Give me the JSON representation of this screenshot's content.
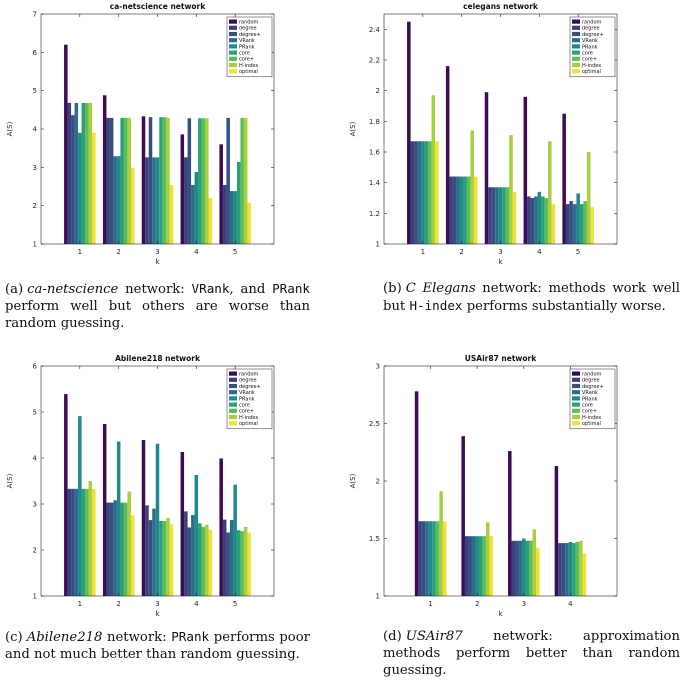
{
  "series_names": [
    "random",
    "degree",
    "degree+",
    "VRank",
    "PRank",
    "core",
    "core+",
    "H-index",
    "optimal"
  ],
  "series_colors": [
    "#3b0c55",
    "#3b3f7a",
    "#354f84",
    "#2e6c8b",
    "#1f8a8a",
    "#2ba077",
    "#5cbd59",
    "#a7cf3e",
    "#f0e232"
  ],
  "chart_data": [
    {
      "type": "bar",
      "title": "ca-netscience network",
      "xlabel": "k",
      "ylabel": "A(S)",
      "categories": [
        "1",
        "2",
        "3",
        "4",
        "5"
      ],
      "ylim": [
        1,
        7
      ],
      "yticks": [
        "1",
        "2",
        "3",
        "4",
        "5",
        "6",
        "7"
      ],
      "legend": "top-right",
      "series": [
        {
          "name": "random",
          "values": [
            6.2,
            4.88,
            4.33,
            3.86,
            3.6
          ]
        },
        {
          "name": "degree",
          "values": [
            4.68,
            4.29,
            3.26,
            3.26,
            2.54
          ]
        },
        {
          "name": "degree+",
          "values": [
            4.36,
            4.29,
            4.31,
            4.28,
            4.29
          ]
        },
        {
          "name": "VRank",
          "values": [
            4.68,
            3.29,
            3.26,
            2.54,
            2.38
          ]
        },
        {
          "name": "PRank",
          "values": [
            3.9,
            3.29,
            3.26,
            2.88,
            2.38
          ]
        },
        {
          "name": "core",
          "values": [
            4.68,
            4.29,
            4.31,
            4.28,
            3.14
          ]
        },
        {
          "name": "core+",
          "values": [
            4.68,
            4.29,
            4.31,
            4.28,
            4.29
          ]
        },
        {
          "name": "H-index",
          "values": [
            4.68,
            4.29,
            4.29,
            4.28,
            4.29
          ]
        },
        {
          "name": "optimal",
          "values": [
            3.9,
            2.99,
            2.54,
            2.2,
            2.08
          ]
        }
      ]
    },
    {
      "type": "bar",
      "title": "celegans network",
      "xlabel": "k",
      "ylabel": "A(S)",
      "categories": [
        "1",
        "2",
        "3",
        "4",
        "5"
      ],
      "ylim": [
        1,
        2.5
      ],
      "yticks": [
        "1",
        "1.2",
        "1.4",
        "1.6",
        "1.8",
        "2",
        "2.2",
        "2.4"
      ],
      "legend": "top-right",
      "series": [
        {
          "name": "random",
          "values": [
            2.45,
            2.16,
            1.99,
            1.96,
            1.85
          ]
        },
        {
          "name": "degree",
          "values": [
            1.67,
            1.44,
            1.37,
            1.31,
            1.26
          ]
        },
        {
          "name": "degree+",
          "values": [
            1.67,
            1.44,
            1.37,
            1.3,
            1.28
          ]
        },
        {
          "name": "VRank",
          "values": [
            1.67,
            1.44,
            1.37,
            1.31,
            1.26
          ]
        },
        {
          "name": "PRank",
          "values": [
            1.67,
            1.44,
            1.37,
            1.34,
            1.33
          ]
        },
        {
          "name": "core",
          "values": [
            1.67,
            1.44,
            1.37,
            1.31,
            1.26
          ]
        },
        {
          "name": "core+",
          "values": [
            1.67,
            1.44,
            1.37,
            1.3,
            1.28
          ]
        },
        {
          "name": "H-index",
          "values": [
            1.97,
            1.74,
            1.71,
            1.67,
            1.6
          ]
        },
        {
          "name": "optimal",
          "values": [
            1.67,
            1.44,
            1.34,
            1.26,
            1.24
          ]
        }
      ]
    },
    {
      "type": "bar",
      "title": "Abilene218 network",
      "xlabel": "k",
      "ylabel": "A(S)",
      "categories": [
        "1",
        "2",
        "3",
        "4",
        "5"
      ],
      "ylim": [
        1,
        6
      ],
      "yticks": [
        "1",
        "2",
        "3",
        "4",
        "5",
        "6"
      ],
      "legend": "top-right",
      "series": [
        {
          "name": "random",
          "values": [
            5.39,
            4.74,
            4.39,
            4.13,
            3.99
          ]
        },
        {
          "name": "degree",
          "values": [
            3.33,
            3.03,
            2.97,
            2.84,
            2.66
          ]
        },
        {
          "name": "degree+",
          "values": [
            3.33,
            3.03,
            2.65,
            2.49,
            2.38
          ]
        },
        {
          "name": "VRank",
          "values": [
            3.33,
            3.08,
            2.9,
            2.76,
            2.65
          ]
        },
        {
          "name": "PRank",
          "values": [
            4.91,
            4.36,
            4.31,
            3.63,
            3.42
          ]
        },
        {
          "name": "core",
          "values": [
            3.33,
            3.03,
            2.63,
            2.58,
            2.43
          ]
        },
        {
          "name": "core+",
          "values": [
            3.33,
            3.03,
            2.63,
            2.5,
            2.41
          ]
        },
        {
          "name": "H-index",
          "values": [
            3.5,
            3.27,
            2.7,
            2.55,
            2.5
          ]
        },
        {
          "name": "optimal",
          "values": [
            3.33,
            2.75,
            2.56,
            2.44,
            2.38
          ]
        }
      ]
    },
    {
      "type": "bar",
      "title": "USAir87 network",
      "xlabel": "k",
      "ylabel": "A(S)",
      "categories": [
        "1",
        "2",
        "3",
        "4"
      ],
      "ylim": [
        1,
        3
      ],
      "yticks": [
        "1",
        "1.5",
        "2",
        "2.5",
        "3"
      ],
      "legend": "top-right",
      "series": [
        {
          "name": "random",
          "values": [
            2.78,
            2.39,
            2.26,
            2.13
          ]
        },
        {
          "name": "degree",
          "values": [
            1.65,
            1.52,
            1.48,
            1.46
          ]
        },
        {
          "name": "degree+",
          "values": [
            1.65,
            1.52,
            1.48,
            1.46
          ]
        },
        {
          "name": "VRank",
          "values": [
            1.65,
            1.52,
            1.48,
            1.46
          ]
        },
        {
          "name": "PRank",
          "values": [
            1.65,
            1.52,
            1.5,
            1.47
          ]
        },
        {
          "name": "core",
          "values": [
            1.65,
            1.52,
            1.48,
            1.46
          ]
        },
        {
          "name": "core+",
          "values": [
            1.65,
            1.52,
            1.48,
            1.47
          ]
        },
        {
          "name": "H-index",
          "values": [
            1.91,
            1.64,
            1.58,
            1.48
          ]
        },
        {
          "name": "optimal",
          "values": [
            1.65,
            1.52,
            1.42,
            1.37
          ]
        }
      ]
    }
  ],
  "captions": [
    {
      "label": "(a)",
      "parts": [
        {
          "t": "ca-netscience",
          "s": "i"
        },
        {
          "t": " network: ",
          "s": ""
        },
        {
          "t": "VRank",
          "s": "m"
        },
        {
          "t": ", and ",
          "s": ""
        },
        {
          "t": "PRank",
          "s": "m"
        },
        {
          "t": " perform well but others are worse than random guessing.",
          "s": ""
        }
      ]
    },
    {
      "label": "(b)",
      "parts": [
        {
          "t": "C Elegans",
          "s": "i"
        },
        {
          "t": " network: methods work well but ",
          "s": ""
        },
        {
          "t": "H-index",
          "s": "m"
        },
        {
          "t": " performs substantially worse.",
          "s": ""
        }
      ]
    },
    {
      "label": "(c)",
      "parts": [
        {
          "t": "Abilene218",
          "s": "i"
        },
        {
          "t": " network: ",
          "s": ""
        },
        {
          "t": "PRank",
          "s": "m"
        },
        {
          "t": " performs poor and not much better than random guessing.",
          "s": ""
        }
      ]
    },
    {
      "label": "(d)",
      "parts": [
        {
          "t": "USAir87",
          "s": "i"
        },
        {
          "t": " network: approximation methods perform better than random guessing.",
          "s": ""
        }
      ]
    }
  ]
}
